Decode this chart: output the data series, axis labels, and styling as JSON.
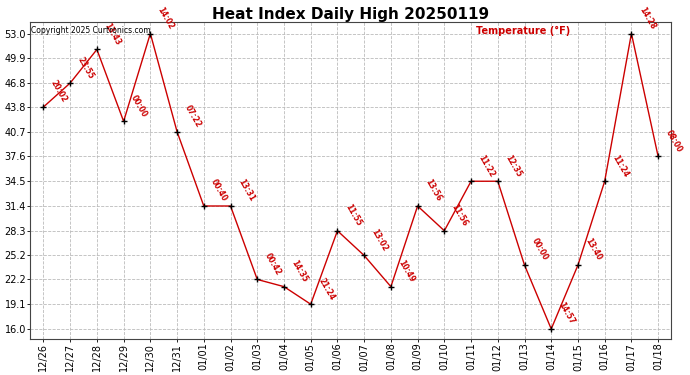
{
  "title": "Heat Index Daily High 20250119",
  "copyright": "Copyright 2025 Curtronics.com",
  "legend_label": "Temperature (°F)",
  "dates": [
    "12/26",
    "12/27",
    "12/28",
    "12/29",
    "12/30",
    "12/31",
    "01/01",
    "01/02",
    "01/03",
    "01/04",
    "01/05",
    "01/06",
    "01/07",
    "01/08",
    "01/09",
    "01/10",
    "01/11",
    "01/12",
    "01/13",
    "01/14",
    "01/15",
    "01/16",
    "01/17",
    "01/18"
  ],
  "values": [
    43.8,
    46.8,
    51.0,
    42.0,
    53.0,
    40.7,
    31.4,
    31.4,
    22.2,
    21.3,
    19.1,
    28.3,
    25.2,
    21.3,
    31.4,
    28.3,
    34.5,
    34.5,
    24.0,
    16.0,
    24.0,
    34.5,
    53.0,
    37.6
  ],
  "time_labels": [
    "20:02",
    "23:55",
    "13:43",
    "00:00",
    "14:02",
    "07:22",
    "00:40",
    "13:31",
    "00:42",
    "14:35",
    "21:24",
    "11:55",
    "13:02",
    "10:49",
    "13:56",
    "11:56",
    "11:22",
    "12:35",
    "00:00",
    "14:57",
    "13:40",
    "11:24",
    "14:28",
    "08:00"
  ],
  "yticks": [
    16.0,
    19.1,
    22.2,
    25.2,
    28.3,
    31.4,
    34.5,
    37.6,
    40.7,
    43.8,
    46.8,
    49.9,
    53.0
  ],
  "ylim": [
    14.8,
    54.5
  ],
  "line_color": "#cc0000",
  "marker_color": "#000000",
  "text_color": "#cc0000",
  "title_fontsize": 11,
  "tick_fontsize": 7,
  "legend_color": "#cc0000",
  "bg_color": "#ffffff",
  "grid_color": "#bbbbbb"
}
